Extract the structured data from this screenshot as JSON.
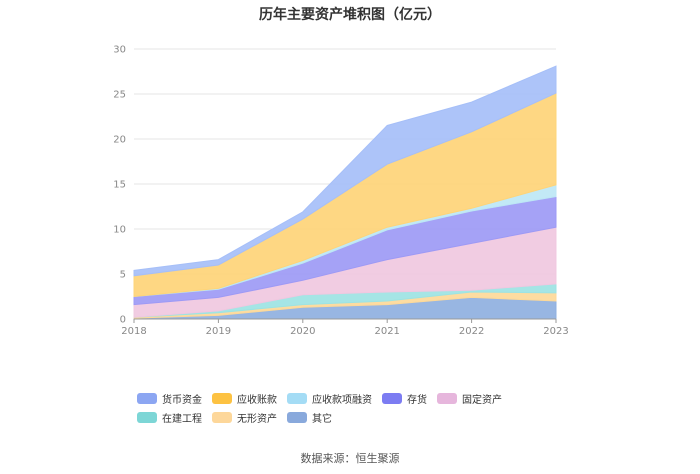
{
  "chart_data": {
    "type": "area",
    "stacked": true,
    "title": "历年主要资产堆积图（亿元）",
    "x": [
      "2018",
      "2019",
      "2020",
      "2021",
      "2022",
      "2023"
    ],
    "y_ticks": [
      "0",
      "5",
      "10",
      "15",
      "20",
      "25",
      "30"
    ],
    "ylim": [
      0,
      30
    ],
    "grid": true,
    "legend_position": "bottom",
    "series": [
      {
        "name": "其它",
        "color": "#8fb0e0",
        "values": [
          0.1,
          0.4,
          1.3,
          1.6,
          2.4,
          2.0
        ]
      },
      {
        "name": "无形资产",
        "color": "#fdd999",
        "values": [
          0.1,
          0.3,
          0.3,
          0.4,
          0.6,
          0.9
        ]
      },
      {
        "name": "在建工程",
        "color": "#9de3e3",
        "values": [
          0.0,
          0.2,
          1.1,
          1.0,
          0.2,
          1.0
        ]
      },
      {
        "name": "固定资产",
        "color": "#f0c8e0",
        "values": [
          1.4,
          1.5,
          1.6,
          3.6,
          5.2,
          6.3
        ]
      },
      {
        "name": "存货",
        "color": "#9d9af5",
        "values": [
          0.9,
          0.9,
          1.9,
          3.3,
          3.6,
          3.4
        ]
      },
      {
        "name": "应收款项融资",
        "color": "#bde7f5",
        "values": [
          0.0,
          0.1,
          0.3,
          0.3,
          0.3,
          1.3
        ]
      },
      {
        "name": "应收账款",
        "color": "#fed478",
        "values": [
          2.3,
          2.6,
          4.6,
          7.0,
          8.5,
          10.2
        ]
      },
      {
        "name": "货币资金",
        "color": "#a6bff8",
        "values": [
          0.6,
          0.6,
          0.8,
          4.3,
          3.3,
          3.0
        ]
      }
    ],
    "legend": [
      {
        "name": "货币资金",
        "color": "#8ca6f2"
      },
      {
        "name": "应收账款",
        "color": "#fdc242"
      },
      {
        "name": "应收款项融资",
        "color": "#a4dcf5"
      },
      {
        "name": "存货",
        "color": "#7c7cf2"
      },
      {
        "name": "固定资产",
        "color": "#e6b6dc"
      },
      {
        "name": "在建工程",
        "color": "#7dd6d6"
      },
      {
        "name": "无形资产",
        "color": "#fdd79a"
      },
      {
        "name": "其它",
        "color": "#89a9dc"
      }
    ],
    "source": "数据来源：恒生聚源"
  }
}
